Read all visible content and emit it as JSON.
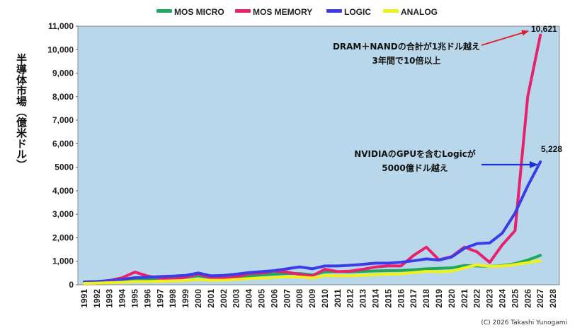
{
  "chart_data": {
    "type": "line",
    "ylabel": "半導体市場（億米ドル）",
    "xlabel": "",
    "ylim": [
      0,
      11000
    ],
    "yticks": [
      0,
      1000,
      2000,
      3000,
      4000,
      5000,
      6000,
      7000,
      8000,
      9000,
      10000,
      11000
    ],
    "ytick_labels": [
      "0",
      "1,000",
      "2,000",
      "3,000",
      "4,000",
      "5000",
      "6,000",
      "7,000",
      "8,000",
      "9,000",
      "10,000",
      "11,000"
    ],
    "x": [
      "1991",
      "1992",
      "1993",
      "1994",
      "1995",
      "1996",
      "1997",
      "1998",
      "1999",
      "2000",
      "2001",
      "2002",
      "2003",
      "2004",
      "2005",
      "2006",
      "2007",
      "2008",
      "2009",
      "2010",
      "2011",
      "2012",
      "2013",
      "2014",
      "2015",
      "2016",
      "2017",
      "2018",
      "2019",
      "2020",
      "2021",
      "2022",
      "2023",
      "2024",
      "2025",
      "2026",
      "2027",
      "2028"
    ],
    "grid": false,
    "legend_position": "top",
    "plot_background": "#b9d7ea",
    "series": [
      {
        "name": "MOS MICRO",
        "color": "#1fa85a",
        "values": [
          100,
          120,
          160,
          200,
          260,
          240,
          280,
          300,
          320,
          380,
          300,
          310,
          340,
          380,
          420,
          450,
          480,
          480,
          420,
          550,
          560,
          550,
          570,
          590,
          600,
          610,
          640,
          680,
          700,
          720,
          820,
          800,
          780,
          820,
          900,
          1050,
          1250,
          null
        ]
      },
      {
        "name": "MOS MEMORY",
        "color": "#e8206e",
        "values": [
          80,
          110,
          180,
          300,
          540,
          370,
          290,
          230,
          320,
          460,
          300,
          280,
          320,
          480,
          500,
          580,
          540,
          440,
          380,
          660,
          560,
          580,
          660,
          760,
          800,
          800,
          1250,
          1600,
          1060,
          1200,
          1600,
          1400,
          950,
          1700,
          2300,
          8000,
          10621,
          null
        ]
      },
      {
        "name": "LOGIC",
        "color": "#3c3ce6",
        "values": [
          120,
          140,
          180,
          230,
          300,
          320,
          350,
          370,
          400,
          500,
          380,
          400,
          450,
          520,
          560,
          600,
          680,
          760,
          680,
          800,
          800,
          830,
          870,
          920,
          920,
          960,
          1020,
          1100,
          1050,
          1180,
          1550,
          1750,
          1780,
          2200,
          3050,
          4200,
          5228,
          null
        ]
      },
      {
        "name": "ANALOG",
        "color": "#f0f01a",
        "values": [
          60,
          70,
          90,
          110,
          140,
          140,
          150,
          170,
          180,
          220,
          190,
          190,
          230,
          260,
          280,
          310,
          340,
          330,
          290,
          390,
          380,
          380,
          400,
          430,
          450,
          470,
          520,
          570,
          550,
          580,
          720,
          850,
          780,
          800,
          860,
          940,
          1020,
          null
        ]
      }
    ],
    "annotations": [
      {
        "text": "DRAM＋NANDの合計が1兆ドル越え",
        "target_year": "2027",
        "target_value": 10621,
        "color": "#e01b24"
      },
      {
        "text": "3年間で10倍以上"
      },
      {
        "text": "NVIDIAのGPUを含むLogicが",
        "target_year": "2027",
        "target_value": 5228,
        "color": "#1b2fd6"
      },
      {
        "text": "5000億ドル越え"
      }
    ],
    "end_labels": [
      "10,621",
      "5,228"
    ],
    "copyright": "(C) 2026 Takashi Yunogami"
  }
}
